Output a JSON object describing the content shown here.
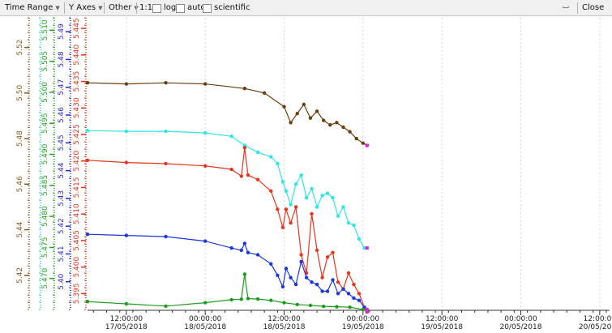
{
  "toolbar": {
    "time_range": "Time Range",
    "y_axes": "Y Axes",
    "other": "Other",
    "ratio": "1:1",
    "log": "log",
    "auto": "auto",
    "scientific": "scientific",
    "close": "Close",
    "corner_glyph": "⌴"
  },
  "chart_data": {
    "type": "line",
    "x_axis": {
      "ticks": [
        {
          "time": "12:00:00",
          "date": "17/05/2018",
          "h": 12
        },
        {
          "time": "00:00:00",
          "date": "18/05/2018",
          "h": 24
        },
        {
          "time": "12:00:00",
          "date": "18/05/2018",
          "h": 36
        },
        {
          "time": "00:00:00",
          "date": "19/05/2018",
          "h": 48
        },
        {
          "time": "12:00:00",
          "date": "19/05/2018",
          "h": 60
        },
        {
          "time": "00:00:00",
          "date": "20/05/2018",
          "h": 72
        },
        {
          "time": "12:00:00",
          "date": "20/05/2018",
          "h": 84
        }
      ],
      "range_hours": [
        6.1,
        85.5
      ]
    },
    "y_axes": [
      {
        "color": "#8a5a1e",
        "range": [
          5.405,
          5.533
        ],
        "ticks": [
          "5.42",
          "5.44",
          "5.46",
          "5.48",
          "5.50",
          "5.52"
        ]
      },
      {
        "color": "#2bd4d4",
        "range": [
          5.385,
          5.52
        ],
        "ticks": []
      },
      {
        "color": "#1fa51f",
        "range": [
          5.465,
          5.512
        ],
        "ticks": [
          "5.470",
          "5.475",
          "5.480",
          "5.485",
          "5.490",
          "5.495",
          "5.500",
          "5.505",
          "5.510"
        ]
      },
      {
        "color": "#2727d8",
        "range": [
          5.39,
          5.495
        ],
        "ticks": [
          "5.40",
          "5.41",
          "5.42",
          "5.43",
          "5.44",
          "5.45",
          "5.46",
          "5.47",
          "5.48",
          "5.49"
        ]
      },
      {
        "color": "#e0331c",
        "range": [
          5.392,
          5.447
        ],
        "ticks": [
          "5.395",
          "5.400",
          "5.405",
          "5.410",
          "5.415",
          "5.420",
          "5.425",
          "5.430",
          "5.435",
          "5.440",
          "5.445"
        ]
      }
    ],
    "series": [
      {
        "color": "#6b3f0f",
        "axis": 0,
        "x": [
          6.1,
          12,
          18,
          24,
          30,
          33,
          36,
          37,
          38,
          39,
          40,
          41,
          42,
          43,
          44,
          45,
          46,
          47,
          48,
          48.6
        ],
        "y": [
          5.5045,
          5.504,
          5.5045,
          5.504,
          5.502,
          5.5,
          5.494,
          5.487,
          5.491,
          5.495,
          5.489,
          5.492,
          5.488,
          5.486,
          5.487,
          5.485,
          5.483,
          5.48,
          5.478,
          5.477
        ]
      },
      {
        "color": "#2ee6e6",
        "axis": 0,
        "x": [
          6.1,
          12,
          18,
          24,
          28,
          30,
          32,
          34,
          35,
          35.8,
          36.3,
          37,
          37.8,
          38.6,
          39.4,
          40.2,
          41,
          41.8,
          42.6,
          43.4,
          44.2,
          45,
          45.8,
          46.6,
          47.4,
          48.2,
          48.6
        ],
        "y": [
          5.4835,
          5.4832,
          5.4832,
          5.4825,
          5.481,
          5.477,
          5.474,
          5.472,
          5.469,
          5.461,
          5.457,
          5.451,
          5.46,
          5.464,
          5.454,
          5.458,
          5.45,
          5.455,
          5.456,
          5.454,
          5.446,
          5.45,
          5.443,
          5.442,
          5.436,
          5.432,
          5.432
        ]
      },
      {
        "color": "#e8351f",
        "axis": 0,
        "x": [
          6.1,
          12,
          18,
          24,
          28,
          29.5,
          30,
          30.5,
          32,
          34,
          35,
          35.8,
          36.3,
          37,
          37.8,
          38.6,
          39.4,
          40.2,
          41,
          41.8,
          42.6,
          43.4,
          44.2,
          45,
          45.8,
          46.6,
          47.4,
          48.2,
          48.6
        ],
        "y": [
          5.4705,
          5.4695,
          5.469,
          5.468,
          5.4665,
          5.4635,
          5.476,
          5.464,
          5.462,
          5.457,
          5.449,
          5.441,
          5.449,
          5.443,
          5.45,
          5.429,
          5.421,
          5.447,
          5.431,
          5.419,
          5.428,
          5.43,
          5.417,
          5.414,
          5.421,
          5.416,
          5.412,
          5.406,
          5.404
        ]
      },
      {
        "color": "#1a37e0",
        "axis": 0,
        "x": [
          6.1,
          12,
          18,
          24,
          28,
          29.5,
          30,
          30.5,
          32,
          34,
          35,
          35.8,
          36.3,
          37,
          37.8,
          38.6,
          39.4,
          40.2,
          41,
          41.8,
          42.6,
          43.4,
          44.2,
          45,
          45.8,
          46.6,
          47.4,
          48.2,
          48.6
        ],
        "y": [
          5.438,
          5.4375,
          5.437,
          5.435,
          5.432,
          5.431,
          5.434,
          5.43,
          5.429,
          5.425,
          5.42,
          5.415,
          5.423,
          5.419,
          5.416,
          5.426,
          5.419,
          5.417,
          5.416,
          5.413,
          5.413,
          5.418,
          5.412,
          5.414,
          5.412,
          5.41,
          5.409,
          5.406,
          5.405
        ]
      },
      {
        "color": "#1c9e1c",
        "axis": 0,
        "x": [
          6.1,
          12,
          18,
          24,
          28,
          29.5,
          30,
          30.5,
          32,
          34,
          36,
          38,
          40,
          42,
          44,
          46,
          48,
          48.6
        ],
        "y": [
          5.4085,
          5.4075,
          5.4065,
          5.408,
          5.4093,
          5.4095,
          5.4205,
          5.4098,
          5.4096,
          5.409,
          5.408,
          5.4072,
          5.4068,
          5.4064,
          5.4062,
          5.406,
          5.405,
          5.4045
        ]
      }
    ]
  }
}
